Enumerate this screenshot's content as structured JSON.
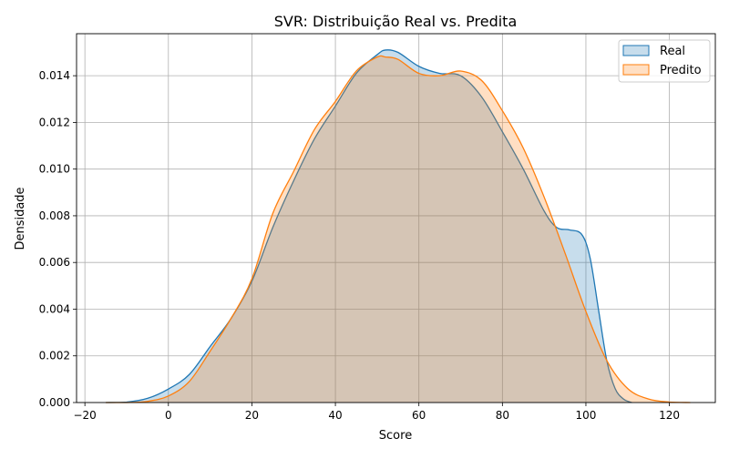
{
  "chart_data": {
    "type": "area",
    "title": "SVR: Distribuição Real vs. Predita",
    "xlabel": "Score",
    "ylabel": "Densidade",
    "xlim": [
      -22,
      131
    ],
    "ylim": [
      0,
      0.0158
    ],
    "xticks": [
      -20,
      0,
      20,
      40,
      60,
      80,
      100,
      120
    ],
    "xtick_labels": [
      "−20",
      "0",
      "20",
      "40",
      "60",
      "80",
      "100",
      "120"
    ],
    "yticks": [
      0,
      0.002,
      0.004,
      0.006,
      0.008,
      0.01,
      0.012,
      0.014
    ],
    "ytick_labels": [
      "0.000",
      "0.002",
      "0.004",
      "0.006",
      "0.008",
      "0.010",
      "0.012",
      "0.014"
    ],
    "grid": true,
    "legend_position": "top-right",
    "series": [
      {
        "name": "Real",
        "color": "#1f77b4",
        "x": [
          -15,
          -10,
          -5,
          0,
          5,
          10,
          15,
          20,
          25,
          30,
          35,
          40,
          45,
          50,
          52,
          55,
          60,
          65,
          70,
          75,
          80,
          85,
          90,
          93,
          96,
          99,
          101,
          103,
          105,
          107,
          109,
          111
        ],
        "y": [
          0.0,
          2e-05,
          0.00018,
          0.00058,
          0.0012,
          0.0024,
          0.0036,
          0.0052,
          0.0075,
          0.0095,
          0.0113,
          0.0127,
          0.0141,
          0.0149,
          0.0151,
          0.015,
          0.0144,
          0.0141,
          0.014,
          0.0131,
          0.0116,
          0.01,
          0.0082,
          0.0075,
          0.0074,
          0.0072,
          0.0062,
          0.004,
          0.0018,
          0.0006,
          0.00015,
          0.0
        ]
      },
      {
        "name": "Predito",
        "color": "#ff7f0e",
        "x": [
          -15,
          -10,
          -5,
          0,
          5,
          10,
          15,
          20,
          25,
          30,
          35,
          40,
          45,
          50,
          52,
          55,
          60,
          65,
          70,
          75,
          80,
          85,
          90,
          95,
          100,
          105,
          110,
          115,
          120,
          125
        ],
        "y": [
          0.0,
          0.0,
          5e-05,
          0.00028,
          0.0009,
          0.0022,
          0.0036,
          0.0053,
          0.0081,
          0.0099,
          0.0117,
          0.0129,
          0.0142,
          0.0148,
          0.0148,
          0.0147,
          0.0141,
          0.014,
          0.0142,
          0.0138,
          0.0125,
          0.0109,
          0.0088,
          0.0064,
          0.0039,
          0.0018,
          0.0006,
          0.00015,
          2e-05,
          0.0
        ]
      }
    ]
  }
}
